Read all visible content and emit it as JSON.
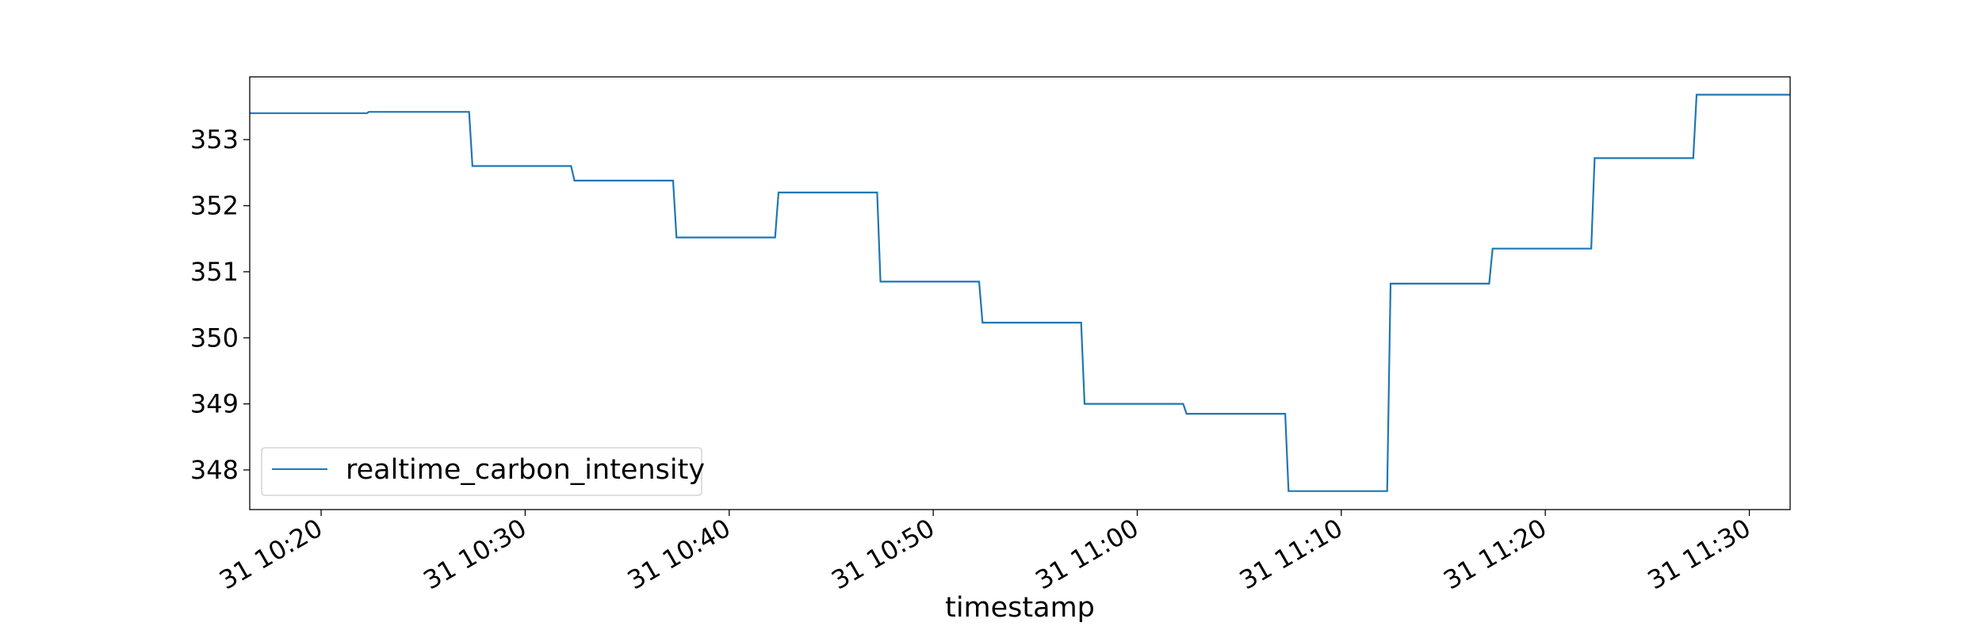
{
  "chart_data": {
    "type": "line",
    "title": "",
    "xlabel": "timestamp",
    "ylabel": "",
    "grid": false,
    "legend_position": "lower-left",
    "xlim": [
      "10:16:30",
      "11:32:00"
    ],
    "ylim": [
      347.4,
      353.95
    ],
    "x_ticks": [
      "10:20",
      "10:30",
      "10:40",
      "10:50",
      "11:00",
      "11:10",
      "11:20",
      "11:30"
    ],
    "x_tick_labels": [
      "31 10:20",
      "31 10:30",
      "31 10:40",
      "31 10:50",
      "31 11:00",
      "31 11:10",
      "31 11:20",
      "31 11:30"
    ],
    "y_ticks": [
      348,
      349,
      350,
      351,
      352,
      353
    ],
    "y_tick_labels": [
      "348",
      "349",
      "350",
      "351",
      "352",
      "353"
    ],
    "series": [
      {
        "name": "realtime_carbon_intensity",
        "color": "#1f77b4",
        "points": [
          {
            "x": "10:16:30",
            "y": 353.4
          },
          {
            "x": "10:22:15",
            "y": 353.4
          },
          {
            "x": "10:22:20",
            "y": 353.42
          },
          {
            "x": "10:27:15",
            "y": 353.42
          },
          {
            "x": "10:27:25",
            "y": 352.6
          },
          {
            "x": "10:32:15",
            "y": 352.6
          },
          {
            "x": "10:32:25",
            "y": 352.38
          },
          {
            "x": "10:37:15",
            "y": 352.38
          },
          {
            "x": "10:37:25",
            "y": 351.52
          },
          {
            "x": "10:42:15",
            "y": 351.52
          },
          {
            "x": "10:42:25",
            "y": 352.2
          },
          {
            "x": "10:47:15",
            "y": 352.2
          },
          {
            "x": "10:47:25",
            "y": 350.85
          },
          {
            "x": "10:52:15",
            "y": 350.85
          },
          {
            "x": "10:52:25",
            "y": 350.23
          },
          {
            "x": "10:57:15",
            "y": 350.23
          },
          {
            "x": "10:57:25",
            "y": 349.0
          },
          {
            "x": "11:02:15",
            "y": 349.0
          },
          {
            "x": "11:02:25",
            "y": 348.85
          },
          {
            "x": "11:07:15",
            "y": 348.85
          },
          {
            "x": "11:07:25",
            "y": 347.68
          },
          {
            "x": "11:12:15",
            "y": 347.68
          },
          {
            "x": "11:12:25",
            "y": 350.82
          },
          {
            "x": "11:17:15",
            "y": 350.82
          },
          {
            "x": "11:17:25",
            "y": 351.35
          },
          {
            "x": "11:22:15",
            "y": 351.35
          },
          {
            "x": "11:22:25",
            "y": 352.72
          },
          {
            "x": "11:27:15",
            "y": 352.72
          },
          {
            "x": "11:27:25",
            "y": 353.68
          },
          {
            "x": "11:32:00",
            "y": 353.68
          }
        ]
      }
    ]
  }
}
